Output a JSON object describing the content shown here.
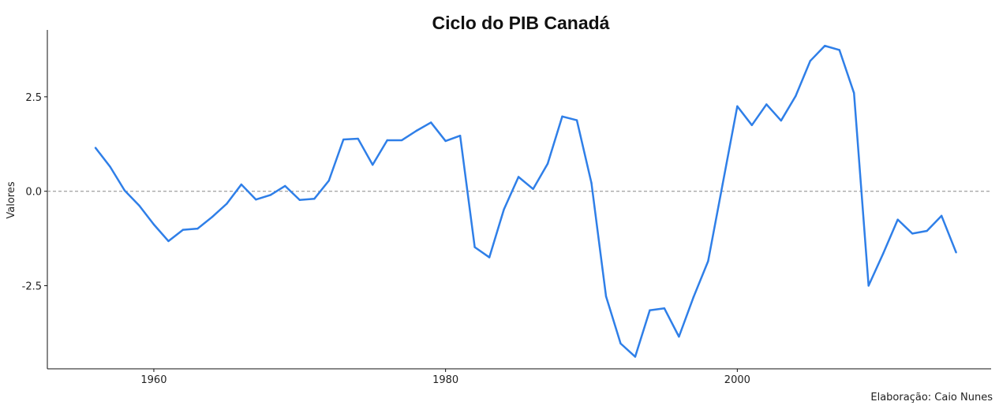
{
  "chart_data": {
    "type": "line",
    "title": "Ciclo do PIB Canadá",
    "xlabel": "",
    "ylabel": "Valores",
    "caption": "Elaboração: Caio Nunes",
    "xlim": [
      1952.7,
      2017.4
    ],
    "ylim": [
      -4.7,
      4.27
    ],
    "x_ticks": [
      1960,
      1980,
      2000
    ],
    "x_tick_labels": [
      "1960",
      "1980",
      "2000"
    ],
    "y_ticks": [
      2.5,
      0.0,
      -2.5
    ],
    "y_tick_labels": [
      "2.5",
      "0.0",
      "-2.5"
    ],
    "reference_line": 0,
    "line_color": "#2f7fe8",
    "ref_color": "#888888",
    "series": [
      {
        "name": "Ciclo do PIB",
        "x": [
          1956,
          1957,
          1958,
          1959,
          1960,
          1961,
          1962,
          1963,
          1964,
          1965,
          1966,
          1967,
          1968,
          1969,
          1970,
          1971,
          1972,
          1973,
          1974,
          1975,
          1976,
          1977,
          1978,
          1979,
          1980,
          1981,
          1982,
          1983,
          1984,
          1985,
          1986,
          1987,
          1988,
          1989,
          1990,
          1991,
          1992,
          1993,
          1994,
          1995,
          1996,
          1997,
          1998,
          1999,
          2000,
          2001,
          2002,
          2003,
          2004,
          2005,
          2006,
          2007,
          2008,
          2009,
          2010,
          2011,
          2012,
          2013,
          2014,
          2015
        ],
        "values": [
          1.15,
          0.65,
          0.02,
          -0.38,
          -0.88,
          -1.32,
          -1.02,
          -0.99,
          -0.68,
          -0.33,
          0.18,
          -0.22,
          -0.1,
          0.14,
          -0.23,
          -0.2,
          0.28,
          1.37,
          1.39,
          0.7,
          1.35,
          1.35,
          1.6,
          1.82,
          1.33,
          1.47,
          -1.48,
          -1.75,
          -0.48,
          0.38,
          0.06,
          0.73,
          1.98,
          1.88,
          0.22,
          -2.78,
          -4.03,
          -4.38,
          -3.15,
          -3.1,
          -3.85,
          -2.8,
          -1.85,
          0.2,
          2.25,
          1.75,
          2.3,
          1.87,
          2.52,
          3.45,
          3.85,
          3.74,
          2.6,
          -2.5,
          -1.65,
          -0.75,
          -1.12,
          -1.05,
          -0.65,
          -1.62
        ]
      }
    ]
  }
}
